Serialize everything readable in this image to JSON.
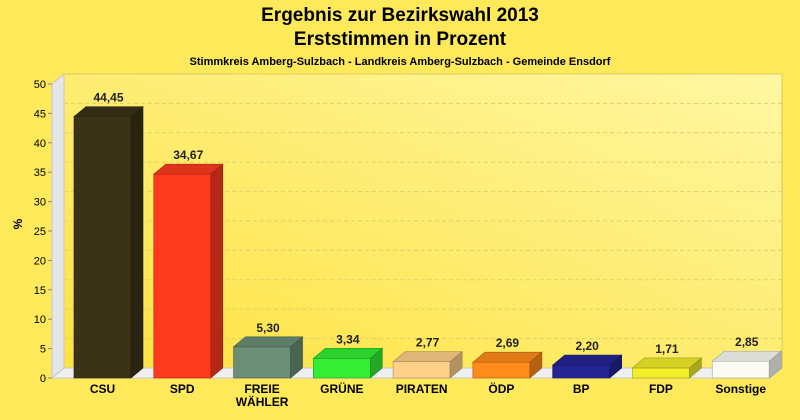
{
  "chart_data": {
    "type": "bar",
    "title": "Ergebnis zur Bezirkswahl 2013",
    "title2": "Erststimmen in Prozent",
    "subtitle": "Stimmkreis Amberg-Sulzbach - Landkreis Amberg-Sulzbach - Gemeinde Ensdorf",
    "xlabel": "",
    "ylabel": "%",
    "ylim": [
      0,
      50
    ],
    "yticks": [
      0,
      5,
      10,
      15,
      20,
      25,
      30,
      35,
      40,
      45,
      50
    ],
    "grid": true,
    "categories": [
      [
        "CSU"
      ],
      [
        "SPD"
      ],
      [
        "FREIE",
        "WÄHLER"
      ],
      [
        "GRÜNE"
      ],
      [
        "PIRATEN"
      ],
      [
        "ÖDP"
      ],
      [
        "BP"
      ],
      [
        "FDP"
      ],
      [
        "Sonstige"
      ]
    ],
    "values": [
      44.45,
      34.67,
      5.3,
      3.34,
      2.77,
      2.69,
      2.2,
      1.71,
      2.85
    ],
    "value_labels": [
      "44,45",
      "34,67",
      "5,30",
      "3,34",
      "2,77",
      "2,69",
      "2,20",
      "1,71",
      "2,85"
    ],
    "colors": [
      "#3a3318",
      "#ff3a1f",
      "#6b8e76",
      "#33ee33",
      "#ffd08a",
      "#ff8c1a",
      "#242493",
      "#f2ee2a",
      "#fbfbf4"
    ]
  }
}
